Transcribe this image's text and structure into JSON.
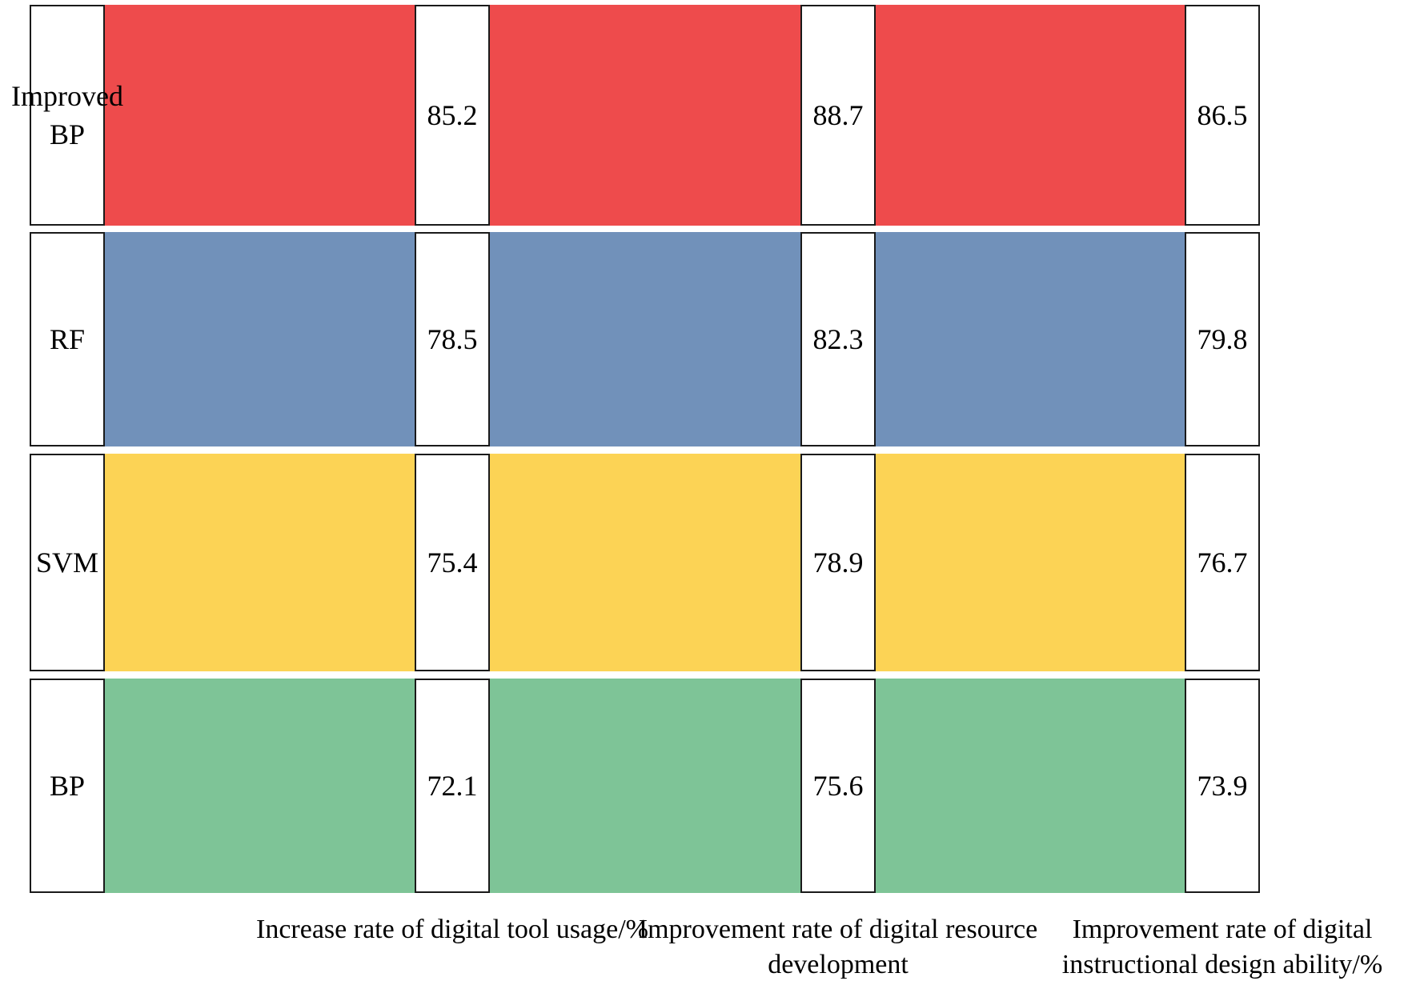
{
  "chart_data": {
    "type": "bar",
    "orientation": "horizontal",
    "title": "",
    "legend": "none",
    "grid": false,
    "background": "#ffffff",
    "box_border_color": "#1a1a1a",
    "text_color": "#000000",
    "value_labels_shown": true,
    "categories": [
      "Increase rate of digital tool usage/%",
      "Improvement rate of digital resource development",
      "Improvement rate of digital instructional design ability/%"
    ],
    "series": [
      {
        "name": "Improved BP",
        "color": "#ee4b4c",
        "values": [
          85.2,
          88.7,
          86.5
        ]
      },
      {
        "name": "RF",
        "color": "#7191ba",
        "values": [
          78.5,
          82.3,
          79.8
        ]
      },
      {
        "name": "SVM",
        "color": "#fcd355",
        "values": [
          75.4,
          78.9,
          76.7
        ]
      },
      {
        "name": "BP",
        "color": "#7ec497",
        "values": [
          72.1,
          75.6,
          73.9
        ]
      }
    ]
  }
}
